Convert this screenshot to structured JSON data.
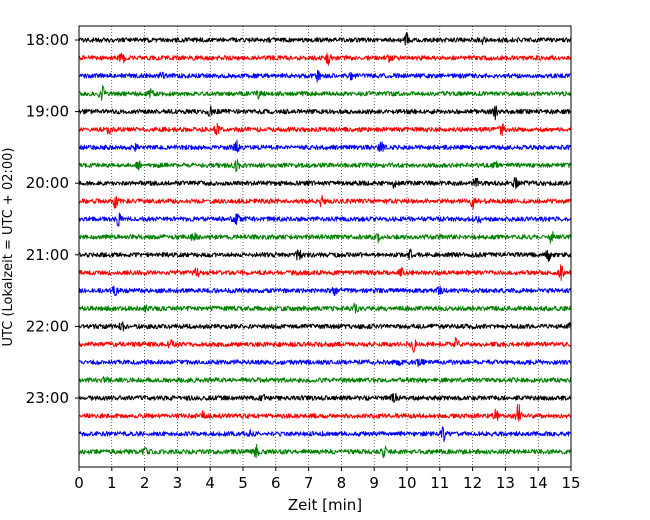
{
  "chart_data": {
    "type": "line",
    "subtype": "helicorder",
    "title": "",
    "xlabel": "Zeit  [min]",
    "ylabel": "UTC (Lokalzeit = UTC + 02:00)",
    "xlim": [
      0,
      15
    ],
    "x_ticks": [
      0,
      1,
      2,
      3,
      4,
      5,
      6,
      7,
      8,
      9,
      10,
      11,
      12,
      13,
      14,
      15
    ],
    "vertical_grid": "dotted, every minute",
    "y_tick_labels": [
      "18:00",
      "19:00",
      "20:00",
      "21:00",
      "22:00",
      "23:00"
    ],
    "trace_minutes": 15,
    "color_cycle": [
      "#000000",
      "#ff0000",
      "#0000ff",
      "#008000"
    ],
    "traces": [
      {
        "start": "18:00",
        "color": "#000000",
        "events": [
          {
            "t": 10.0,
            "amp": 1.3
          },
          {
            "t": 12.3,
            "amp": 0.9
          }
        ]
      },
      {
        "start": "18:15",
        "color": "#ff0000",
        "events": [
          {
            "t": 1.3,
            "amp": 1.6
          },
          {
            "t": 7.6,
            "amp": 1.2
          },
          {
            "t": 9.5,
            "amp": 0.9
          }
        ]
      },
      {
        "start": "18:30",
        "color": "#0000ff",
        "events": [
          {
            "t": 7.3,
            "amp": 1.6
          },
          {
            "t": 2.5,
            "amp": 0.9
          },
          {
            "t": 8.3,
            "amp": 0.9
          }
        ]
      },
      {
        "start": "18:45",
        "color": "#008000",
        "events": [
          {
            "t": 0.7,
            "amp": 1.6
          },
          {
            "t": 2.2,
            "amp": 1.0
          },
          {
            "t": 5.5,
            "amp": 0.8
          }
        ]
      },
      {
        "start": "19:00",
        "color": "#000000",
        "events": [
          {
            "t": 12.7,
            "amp": 1.5
          },
          {
            "t": 4.0,
            "amp": 0.9
          }
        ]
      },
      {
        "start": "19:15",
        "color": "#ff0000",
        "events": [
          {
            "t": 12.9,
            "amp": 1.4
          },
          {
            "t": 4.2,
            "amp": 1.0
          },
          {
            "t": 0.9,
            "amp": 0.9
          }
        ]
      },
      {
        "start": "19:30",
        "color": "#0000ff",
        "events": [
          {
            "t": 4.8,
            "amp": 1.6
          },
          {
            "t": 9.2,
            "amp": 1.2
          },
          {
            "t": 1.7,
            "amp": 0.9
          }
        ]
      },
      {
        "start": "19:45",
        "color": "#008000",
        "events": [
          {
            "t": 4.8,
            "amp": 1.4
          },
          {
            "t": 12.7,
            "amp": 1.2
          },
          {
            "t": 1.8,
            "amp": 0.8
          }
        ]
      },
      {
        "start": "20:00",
        "color": "#000000",
        "events": [
          {
            "t": 12.1,
            "amp": 1.1
          },
          {
            "t": 13.3,
            "amp": 1.0
          },
          {
            "t": 9.6,
            "amp": 0.8
          }
        ]
      },
      {
        "start": "20:15",
        "color": "#ff0000",
        "events": [
          {
            "t": 12.0,
            "amp": 1.6
          },
          {
            "t": 1.1,
            "amp": 1.3
          },
          {
            "t": 7.4,
            "amp": 1.3
          }
        ]
      },
      {
        "start": "20:30",
        "color": "#0000ff",
        "events": [
          {
            "t": 1.2,
            "amp": 1.4
          },
          {
            "t": 4.8,
            "amp": 1.0
          },
          {
            "t": 12.2,
            "amp": 0.9
          }
        ]
      },
      {
        "start": "20:45",
        "color": "#008000",
        "events": [
          {
            "t": 3.5,
            "amp": 1.5
          },
          {
            "t": 14.4,
            "amp": 1.3
          },
          {
            "t": 9.1,
            "amp": 1.0
          }
        ]
      },
      {
        "start": "21:00",
        "color": "#000000",
        "events": [
          {
            "t": 6.7,
            "amp": 1.6
          },
          {
            "t": 14.3,
            "amp": 1.6
          },
          {
            "t": 10.1,
            "amp": 0.9
          }
        ]
      },
      {
        "start": "21:15",
        "color": "#ff0000",
        "events": [
          {
            "t": 14.7,
            "amp": 1.5
          },
          {
            "t": 9.8,
            "amp": 1.3
          },
          {
            "t": 3.6,
            "amp": 1.0
          }
        ]
      },
      {
        "start": "21:30",
        "color": "#0000ff",
        "events": [
          {
            "t": 1.1,
            "amp": 1.1
          },
          {
            "t": 11.0,
            "amp": 1.0
          },
          {
            "t": 7.8,
            "amp": 0.8
          }
        ]
      },
      {
        "start": "21:45",
        "color": "#008000",
        "events": [
          {
            "t": 8.4,
            "amp": 1.0
          },
          {
            "t": 2.0,
            "amp": 0.8
          }
        ]
      },
      {
        "start": "22:00",
        "color": "#000000",
        "events": [
          {
            "t": 1.3,
            "amp": 1.0
          },
          {
            "t": 15.0,
            "amp": 0.9
          }
        ]
      },
      {
        "start": "22:15",
        "color": "#ff0000",
        "events": [
          {
            "t": 10.2,
            "amp": 1.7
          },
          {
            "t": 11.5,
            "amp": 1.2
          },
          {
            "t": 2.8,
            "amp": 0.8
          }
        ]
      },
      {
        "start": "22:30",
        "color": "#0000ff",
        "events": [
          {
            "t": 10.4,
            "amp": 1.3
          },
          {
            "t": 9.8,
            "amp": 1.0
          }
        ]
      },
      {
        "start": "22:45",
        "color": "#008000",
        "events": [
          {
            "t": 0.8,
            "amp": 0.6
          }
        ]
      },
      {
        "start": "23:00",
        "color": "#000000",
        "events": [
          {
            "t": 9.6,
            "amp": 1.2
          },
          {
            "t": 5.6,
            "amp": 0.7
          }
        ]
      },
      {
        "start": "23:15",
        "color": "#ff0000",
        "events": [
          {
            "t": 13.4,
            "amp": 3.0
          },
          {
            "t": 12.7,
            "amp": 1.5
          },
          {
            "t": 3.8,
            "amp": 1.0
          }
        ]
      },
      {
        "start": "23:30",
        "color": "#0000ff",
        "events": [
          {
            "t": 11.1,
            "amp": 1.6
          },
          {
            "t": 5.2,
            "amp": 0.8
          }
        ]
      },
      {
        "start": "23:45",
        "color": "#008000",
        "events": [
          {
            "t": 9.3,
            "amp": 1.4
          },
          {
            "t": 5.4,
            "amp": 1.3
          },
          {
            "t": 2.0,
            "amp": 1.1
          }
        ]
      }
    ]
  }
}
